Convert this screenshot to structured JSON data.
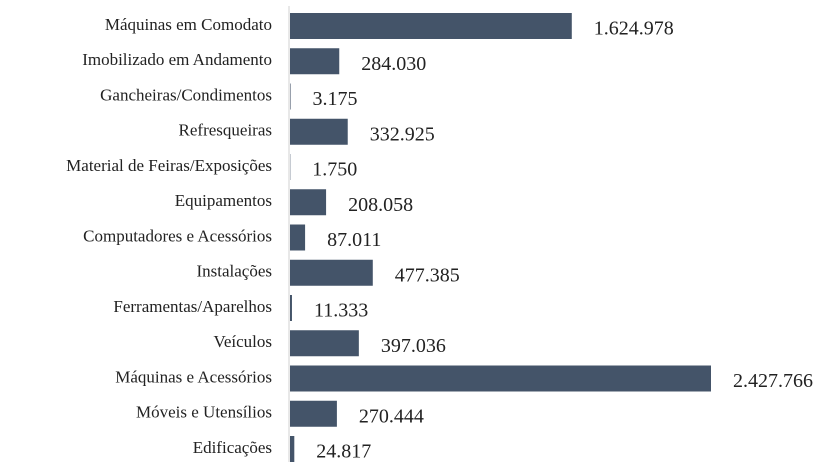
{
  "chart_data": {
    "type": "bar",
    "orientation": "horizontal",
    "categories": [
      "Máquinas em Comodato",
      "Imobilizado em Andamento",
      "Gancheiras/Condimentos",
      "Refresqueiras",
      "Material de Feiras/Exposições",
      "Equipamentos",
      "Computadores e Acessórios",
      "Instalações",
      "Ferramentas/Aparelhos",
      "Veículos",
      "Máquinas e Acessórios",
      "Móveis e Utensílios",
      "Edificações"
    ],
    "values": [
      1624978,
      284030,
      3175,
      332925,
      1750,
      208058,
      87011,
      477385,
      11333,
      397036,
      2427766,
      270444,
      24817
    ],
    "value_labels": [
      "1.624.978",
      "284.030",
      "3.175",
      "332.925",
      "1.750",
      "208.058",
      "87.011",
      "477.385",
      "11.333",
      "397.036",
      "2.427.766",
      "270.444",
      "24.817"
    ],
    "color": "#445469"
  }
}
